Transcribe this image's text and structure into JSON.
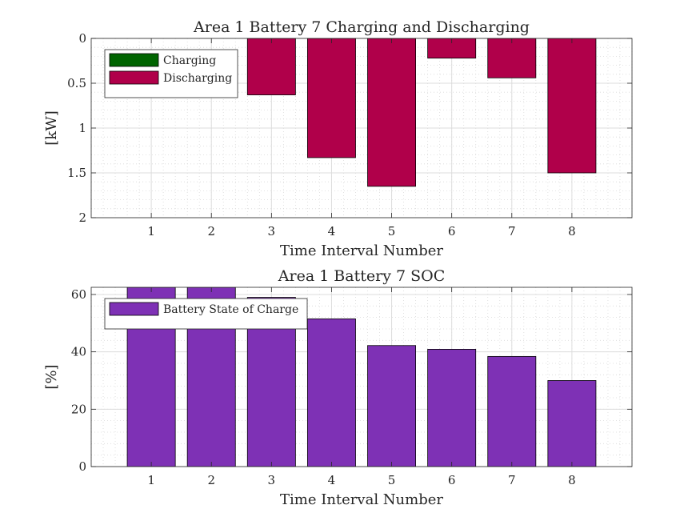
{
  "chart_data": [
    {
      "type": "bar",
      "title": "Area 1 Battery 7 Charging and Discharging",
      "xlabel": "Time Interval Number",
      "ylabel": "[kW]",
      "categories": [
        "1",
        "2",
        "3",
        "4",
        "5",
        "6",
        "7",
        "8"
      ],
      "xlim": [
        0,
        9
      ],
      "ylim": [
        0,
        2
      ],
      "y_reversed": true,
      "yticks": [
        "0",
        "0.5",
        "1",
        "1.5",
        "2"
      ],
      "grid": true,
      "minor_grid": true,
      "legend_position": "top-left",
      "series": [
        {
          "name": "Charging",
          "color": "#006400",
          "values": [
            0,
            0,
            0,
            0,
            0,
            0,
            0,
            0
          ]
        },
        {
          "name": "Discharging",
          "color": "#b0004a",
          "values": [
            0,
            0,
            0.63,
            1.33,
            1.65,
            0.22,
            0.44,
            1.5
          ]
        }
      ]
    },
    {
      "type": "bar",
      "title": "Area 1 Battery 7 SOC",
      "xlabel": "Time Interval Number",
      "ylabel": "[%]",
      "categories": [
        "1",
        "2",
        "3",
        "4",
        "5",
        "6",
        "7",
        "8"
      ],
      "xlim": [
        0,
        9
      ],
      "ylim": [
        0,
        62.5
      ],
      "yticks": [
        "0",
        "20",
        "40",
        "60"
      ],
      "grid": true,
      "minor_grid": true,
      "legend_position": "top-left",
      "series": [
        {
          "name": "Battery State of Charge",
          "color": "#7e31b5",
          "values": [
            62.5,
            62.5,
            59,
            51.5,
            42.2,
            40.9,
            38.4,
            30
          ]
        }
      ]
    }
  ]
}
